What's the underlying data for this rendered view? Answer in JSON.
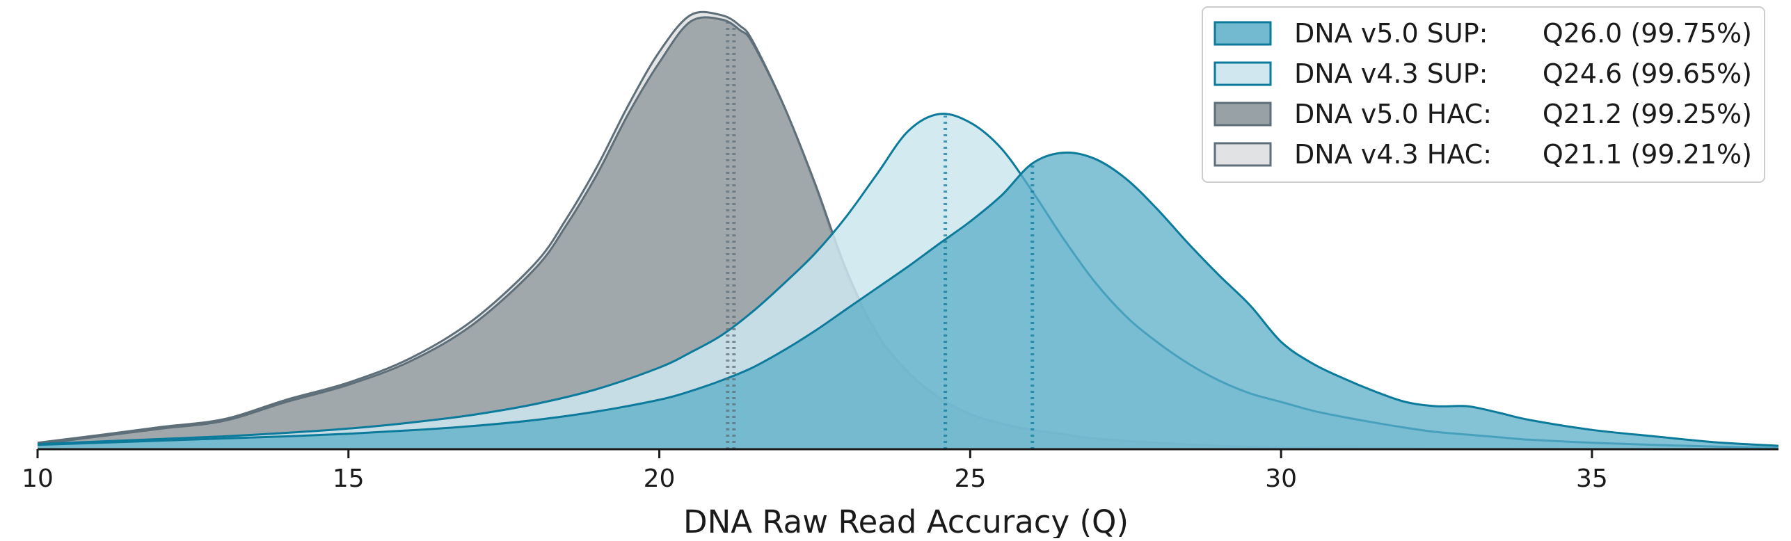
{
  "chart_data": {
    "type": "area",
    "xlabel": "DNA Raw Read Accuracy (Q)",
    "ylabel": "",
    "xlim": [
      10,
      38
    ],
    "ylim": [
      0,
      1.0
    ],
    "xticks": [
      10,
      15,
      20,
      25,
      30,
      35
    ],
    "grid": false,
    "legend_position": "top-right",
    "series": [
      {
        "name": "DNA v5.0 SUP:",
        "value_label": "Q26.0 (99.75%)",
        "median": 26.0,
        "fill": "#5BADC8",
        "fill_opacity": 0.75,
        "stroke": "#0C7B9B",
        "x": [
          10,
          11,
          12,
          13,
          14,
          15,
          16,
          17,
          18,
          19,
          20,
          20.5,
          21,
          21.5,
          22,
          22.5,
          23,
          23.5,
          24,
          24.5,
          25,
          25.5,
          26,
          26.5,
          27,
          27.5,
          28,
          28.5,
          29,
          29.5,
          30,
          30.5,
          31,
          31.5,
          32,
          32.5,
          33,
          33.5,
          34,
          35,
          36,
          37,
          38
        ],
        "y": [
          0.01,
          0.015,
          0.02,
          0.025,
          0.03,
          0.036,
          0.044,
          0.054,
          0.068,
          0.088,
          0.115,
          0.135,
          0.16,
          0.19,
          0.23,
          0.275,
          0.325,
          0.375,
          0.425,
          0.478,
          0.53,
          0.59,
          0.665,
          0.69,
          0.676,
          0.63,
          0.56,
          0.48,
          0.405,
          0.335,
          0.25,
          0.2,
          0.165,
          0.135,
          0.11,
          0.1,
          0.1,
          0.085,
          0.068,
          0.045,
          0.03,
          0.016,
          0.008
        ]
      },
      {
        "name": "DNA v4.3 SUP:",
        "value_label": "Q24.6 (99.65%)",
        "median": 24.6,
        "fill": "#CDE6EE",
        "fill_opacity": 0.85,
        "stroke": "#0C7B9B",
        "x": [
          10,
          11,
          12,
          13,
          14,
          15,
          16,
          17,
          18,
          19,
          20,
          20.5,
          21,
          21.5,
          22,
          22.5,
          23,
          23.5,
          24,
          24.5,
          25,
          25.5,
          26,
          26.5,
          27,
          27.5,
          28,
          28.5,
          29,
          29.5,
          30,
          30.5,
          31,
          31.5,
          32,
          32.5,
          33,
          33.5,
          34,
          35,
          36,
          37,
          38
        ],
        "y": [
          0.012,
          0.018,
          0.024,
          0.03,
          0.038,
          0.048,
          0.062,
          0.08,
          0.105,
          0.14,
          0.19,
          0.225,
          0.265,
          0.32,
          0.385,
          0.455,
          0.54,
          0.64,
          0.74,
          0.78,
          0.76,
          0.7,
          0.6,
          0.49,
          0.39,
          0.31,
          0.25,
          0.2,
          0.16,
          0.13,
          0.11,
          0.09,
          0.075,
          0.062,
          0.05,
          0.04,
          0.034,
          0.028,
          0.022,
          0.015,
          0.01,
          0.006,
          0.003
        ]
      },
      {
        "name": "DNA v5.0 HAC:",
        "value_label": "Q21.2 (99.25%)",
        "median": 21.2,
        "fill": "#969FA4",
        "fill_opacity": 0.88,
        "stroke": "#5E6F7A",
        "x": [
          10,
          11,
          12,
          13,
          14,
          15,
          16,
          17,
          18,
          18.5,
          19,
          19.5,
          20,
          20.5,
          21,
          21.3,
          21.5,
          22,
          22.5,
          23,
          23.5,
          24,
          24.5,
          25,
          25.5,
          26,
          26.5,
          27,
          28,
          29,
          30,
          32,
          34,
          36,
          38
        ],
        "y": [
          0.012,
          0.03,
          0.048,
          0.066,
          0.11,
          0.15,
          0.205,
          0.29,
          0.42,
          0.52,
          0.64,
          0.78,
          0.9,
          0.995,
          1.0,
          0.975,
          0.945,
          0.8,
          0.62,
          0.42,
          0.27,
          0.18,
          0.12,
          0.082,
          0.06,
          0.045,
          0.035,
          0.025,
          0.015,
          0.008,
          0.004,
          0.002,
          0.001,
          0.0,
          0.0
        ]
      },
      {
        "name": "DNA v4.3 HAC:",
        "value_label": "Q21.1 (99.21%)",
        "median": 21.1,
        "fill": "#DEDFE1",
        "fill_opacity": 0.82,
        "stroke": "#5E6F7A",
        "x": [
          10,
          11,
          12,
          13,
          14,
          15,
          16,
          17,
          18,
          18.5,
          19,
          19.5,
          20,
          20.5,
          21,
          21.3,
          21.5,
          22,
          22.5,
          23,
          23.5,
          24,
          24.5,
          25,
          25.5,
          26,
          26.5,
          27,
          28,
          29,
          30,
          32,
          34,
          36,
          38
        ],
        "y": [
          0.015,
          0.033,
          0.052,
          0.07,
          0.115,
          0.155,
          0.212,
          0.3,
          0.432,
          0.535,
          0.658,
          0.8,
          0.925,
          1.01,
          1.01,
          0.985,
          0.95,
          0.8,
          0.615,
          0.412,
          0.265,
          0.176,
          0.118,
          0.08,
          0.058,
          0.044,
          0.034,
          0.024,
          0.014,
          0.007,
          0.004,
          0.002,
          0.001,
          0.0,
          0.0
        ]
      }
    ],
    "draw_order": [
      3,
      2,
      1,
      0
    ]
  },
  "legend": {
    "frame_color": "#CCCCCC"
  },
  "axis": {
    "color": "#1a1a1a"
  }
}
